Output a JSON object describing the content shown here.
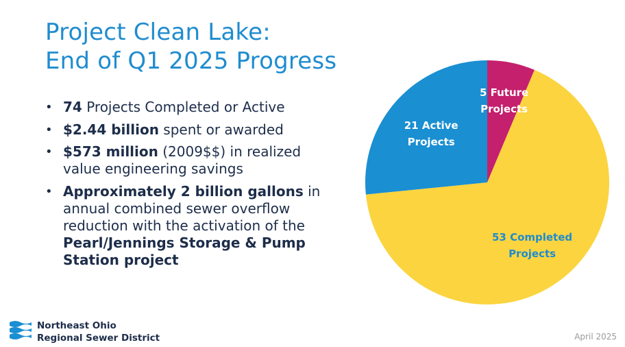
{
  "title": {
    "line1": "Project Clean Lake:",
    "line2": "End of Q1 2025 Progress"
  },
  "bullets": [
    {
      "bold": "74",
      "text": " Projects Completed or Active"
    },
    {
      "bold": "$2.44 billion",
      "text": " spent or awarded"
    },
    {
      "bold": "$573 million",
      "text": " (2009$$) in realized",
      "line2": "value engineering savings"
    },
    {
      "bold": "Approximately 2 billion gallons",
      "text": " in",
      "line2": "annual combined sewer overflow",
      "line3": "reduction with the activation of the",
      "bold2": "Pearl/Jennings Storage & Pump",
      "bold3": "Station project"
    }
  ],
  "organization": {
    "line1": "Northeast Ohio",
    "line2": "Regional Sewer District"
  },
  "date": "April 2025",
  "chart_data": {
    "type": "pie",
    "title": "",
    "slices": [
      {
        "label": "5 Future Projects",
        "line1": "5 Future",
        "line2": "Projects",
        "value": 5,
        "color": "#c4206d",
        "label_color": "#ffffff"
      },
      {
        "label": "53 Completed Projects",
        "line1": "53 Completed",
        "line2": "Projects",
        "value": 53,
        "color": "#fbd43f",
        "label_color": "#1f8ccf"
      },
      {
        "label": "21 Active Projects",
        "line1": "21 Active",
        "line2": "Projects",
        "value": 21,
        "color": "#1a8fd2",
        "label_color": "#ffffff"
      }
    ]
  }
}
